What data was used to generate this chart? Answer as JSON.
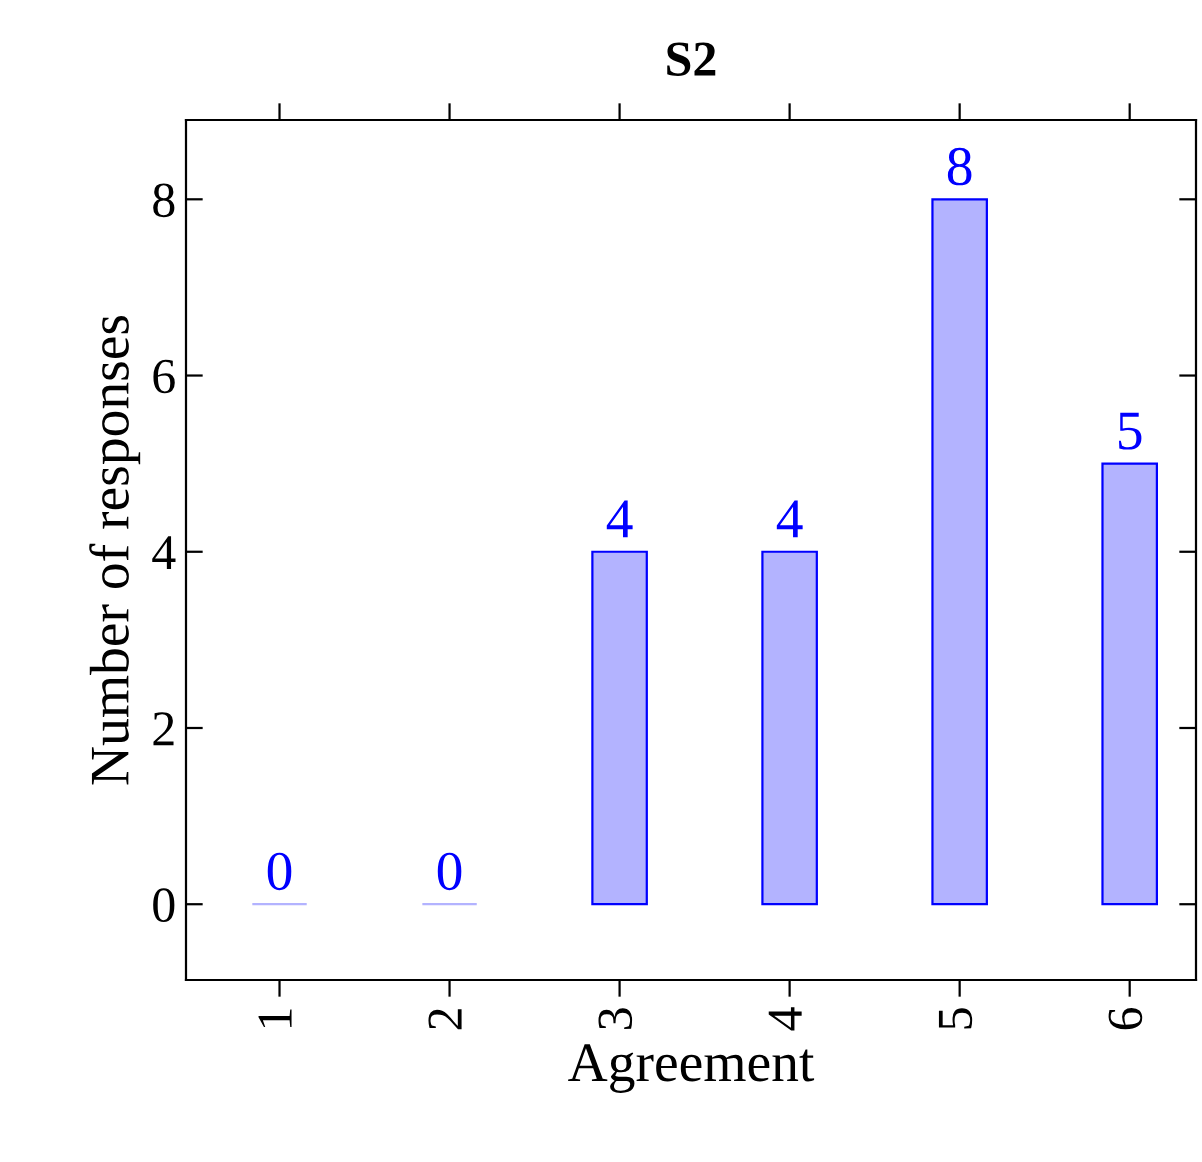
{
  "chart_data": {
    "type": "bar",
    "title": "S2",
    "xlabel": "Agreement",
    "ylabel": "Number of responses",
    "categories": [
      "1",
      "2",
      "3",
      "4",
      "5",
      "6"
    ],
    "series": [
      {
        "color": "#b3b3ff",
        "values": [
          0,
          0,
          4,
          4,
          8,
          5
        ]
      }
    ],
    "ylim": [
      -0.86,
      8.9
    ],
    "yticks": [
      0,
      2,
      4,
      6,
      8
    ],
    "data_labels": true,
    "grid": false,
    "legend": false
  }
}
